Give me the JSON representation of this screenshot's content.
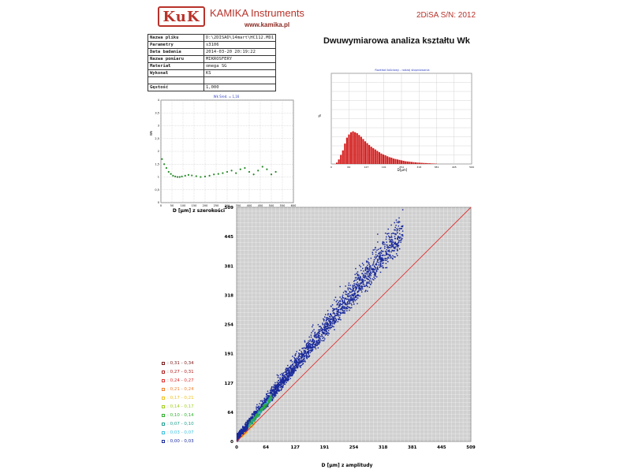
{
  "header": {
    "logo_text": "KuK",
    "company": "KAMIKA Instruments",
    "website": "www.kamika.pl",
    "serial": "2DiSA S/N: 2012"
  },
  "info_table": [
    {
      "label": "Nazwa pliku",
      "value": "D:\\2DISAD\\14mart\\HC112.MD1"
    },
    {
      "label": "Parametry",
      "value": "s3106"
    },
    {
      "label": "Data badania",
      "value": "2014-03-20 20:19:22"
    },
    {
      "label": "Nazwa pomiaru",
      "value": "MIKROSFERY"
    },
    {
      "label": "Materiał",
      "value": "omega SG"
    },
    {
      "label": "Wykonał",
      "value": "KS"
    },
    {
      "label": "",
      "value": ""
    },
    {
      "label": "Gęstość",
      "value": "1,000"
    }
  ],
  "title": "Dwuwymiarowa analiza kształtu Wk",
  "chart_data": [
    {
      "type": "scatter",
      "title": "Wk Śred. = 1,16",
      "xlabel": "D [µm] z szerokości",
      "ylabel": "Wk",
      "xlim": [
        0,
        600
      ],
      "ylim": [
        0,
        4
      ],
      "x_ticks": [
        "0",
        "50",
        "100",
        "150",
        "200",
        "250",
        "300",
        "350",
        "400",
        "450",
        "500",
        "550",
        "600"
      ],
      "y_ticks": [
        "0",
        "0,5",
        "1",
        "1,5",
        "2",
        "2,5",
        "3",
        "3,5",
        "4"
      ],
      "grid": true,
      "color": "#2a8a2a",
      "x": [
        5,
        15,
        25,
        35,
        45,
        55,
        65,
        75,
        85,
        95,
        110,
        125,
        140,
        160,
        180,
        200,
        220,
        240,
        260,
        280,
        300,
        320,
        340,
        360,
        380,
        400,
        420,
        440,
        460,
        480,
        500,
        520
      ],
      "y": [
        1.7,
        1.5,
        1.35,
        1.2,
        1.12,
        1.05,
        1.02,
        1.0,
        1.0,
        1.02,
        1.05,
        1.08,
        1.06,
        1.03,
        1.0,
        1.02,
        1.05,
        1.1,
        1.12,
        1.15,
        1.2,
        1.25,
        1.15,
        1.3,
        1.35,
        1.2,
        1.1,
        1.25,
        1.4,
        1.3,
        1.1,
        1.2
      ]
    },
    {
      "type": "bar",
      "title": "Rozkład ilościowy - rodzaj stopniowania",
      "xlabel": "D[µm]",
      "ylabel": "%",
      "xlim": [
        0,
        509
      ],
      "color": "#d42020",
      "x_ticks": [
        "0",
        "64",
        "127",
        "191",
        "254",
        "318",
        "381",
        "445",
        "509"
      ],
      "values": [
        0.3,
        1.0,
        2.0,
        3.0,
        4.5,
        5.8,
        6.5,
        7.0,
        7.2,
        7.0,
        6.8,
        6.4,
        6.0,
        5.5,
        5.0,
        4.6,
        4.2,
        3.8,
        3.5,
        3.2,
        2.9,
        2.6,
        2.3,
        2.1,
        1.9,
        1.7,
        1.5,
        1.4,
        1.2,
        1.1,
        1.0,
        0.9,
        0.8,
        0.7,
        0.6,
        0.55,
        0.5,
        0.45,
        0.4,
        0.35,
        0.3,
        0.28,
        0.25,
        0.22,
        0.2,
        0.18,
        0.15,
        0.12,
        0.1,
        0.08
      ],
      "grid": true
    },
    {
      "type": "heatmap",
      "xlabel": "D [µm] z amplitudy",
      "ylabel": "D [µm] z szerokości",
      "xlim": [
        0,
        509
      ],
      "ylim": [
        0,
        509
      ],
      "x_ticks": [
        "0",
        "64",
        "127",
        "191",
        "254",
        "318",
        "381",
        "445",
        "509"
      ],
      "y_ticks": [
        "0",
        "64",
        "127",
        "191",
        "254",
        "318",
        "381",
        "445",
        "509"
      ],
      "grid": true,
      "reference_line": {
        "from": [
          0,
          0
        ],
        "to": [
          509,
          509
        ],
        "color": "#e03030"
      },
      "legend_placement": "left",
      "legend": [
        {
          "label": "0,31 - 0,34",
          "color": "#7a1a1a"
        },
        {
          "label": "0,27 - 0,31",
          "color": "#b02020"
        },
        {
          "label": "0,24 - 0,27",
          "color": "#e03030"
        },
        {
          "label": "0,21 - 0,24",
          "color": "#f08030"
        },
        {
          "label": "0,17 - 0,21",
          "color": "#f0c020"
        },
        {
          "label": "0,14 - 0,17",
          "color": "#a0d020"
        },
        {
          "label": "0,10 - 0,14",
          "color": "#30b030"
        },
        {
          "label": "0,07 - 0,10",
          "color": "#20a090"
        },
        {
          "label": "0,03 - 0,07",
          "color": "#40c0e0"
        },
        {
          "label": "0,00 - 0,03",
          "color": "#1a2a9a"
        }
      ]
    }
  ]
}
